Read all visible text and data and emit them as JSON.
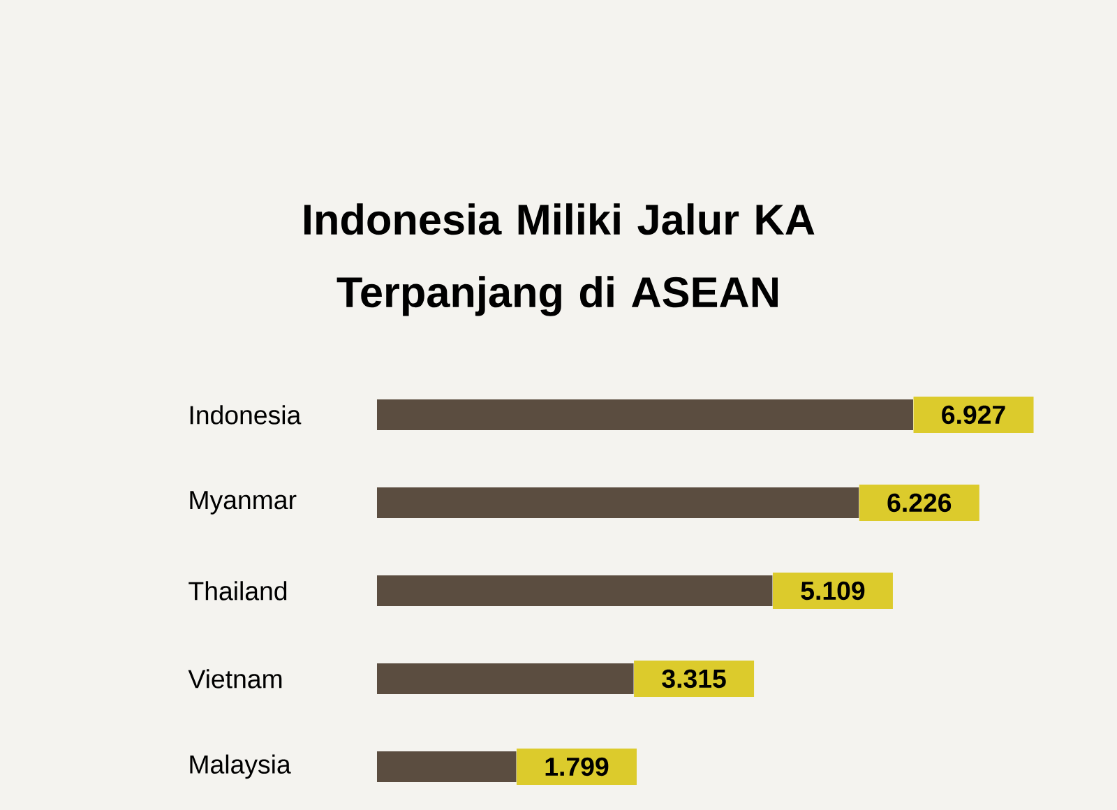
{
  "chart_data": {
    "type": "bar",
    "orientation": "horizontal",
    "title": "Indonesia Miliki Jalur KA Terpanjang di ASEAN",
    "categories": [
      "Indonesia",
      "Myanmar",
      "Thailand",
      "Vietnam",
      "Malaysia"
    ],
    "values": [
      6927,
      6226,
      5109,
      3315,
      1799
    ],
    "value_labels": [
      "6.927",
      "6.226",
      "5.109",
      "3.315",
      "1.799"
    ],
    "color": "#5b4d40",
    "tick_labels": "y"
  }
}
